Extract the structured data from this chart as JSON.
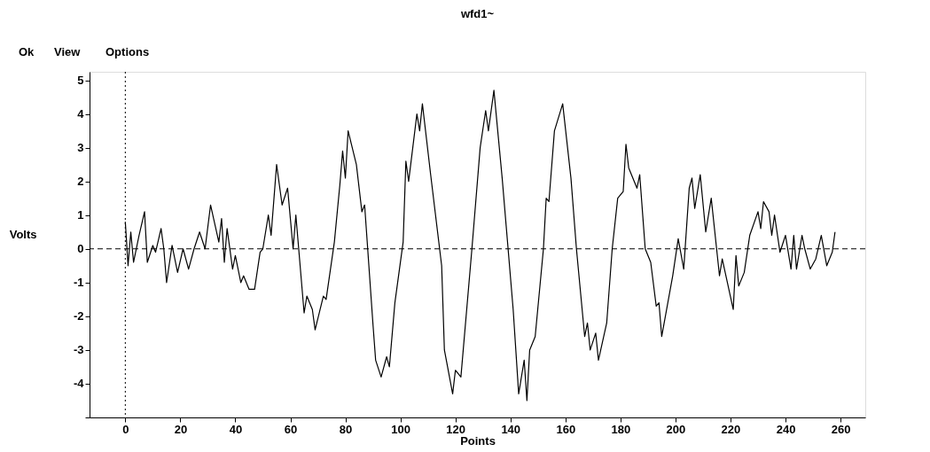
{
  "chart_data": {
    "type": "line",
    "title": "wfd1~",
    "xlabel": "Points",
    "ylabel": "Volts",
    "annotations": [
      "Ok",
      "View",
      "Options"
    ],
    "x": [
      0,
      1,
      2,
      3,
      5,
      7,
      8,
      10,
      11,
      13,
      14,
      15,
      17,
      19,
      21,
      23,
      25,
      27,
      29,
      31,
      34,
      35,
      36,
      37,
      39,
      40,
      42,
      43,
      45,
      47,
      49,
      50,
      52,
      53,
      55,
      57,
      59,
      61,
      62,
      65,
      66,
      68,
      69,
      72,
      73,
      76,
      78,
      79,
      80,
      81,
      84,
      86,
      87,
      90,
      91,
      93,
      95,
      96,
      98,
      101,
      102,
      103,
      106,
      107,
      108,
      111,
      115,
      116,
      119,
      120,
      122,
      126,
      129,
      131,
      132,
      134,
      137,
      141,
      143,
      145,
      146,
      147,
      149,
      152,
      153,
      154,
      156,
      159,
      162,
      164,
      167,
      168,
      169,
      171,
      172,
      175,
      177,
      179,
      181,
      182,
      183,
      186,
      187,
      189,
      191,
      193,
      194,
      195,
      199,
      201,
      203,
      205,
      206,
      207,
      209,
      211,
      213,
      216,
      217,
      221,
      222,
      223,
      225,
      227,
      230,
      231,
      232,
      234,
      235,
      236,
      238,
      240,
      242,
      243,
      244,
      246,
      247,
      249,
      251,
      253,
      255,
      257,
      258
    ],
    "series": [
      {
        "color": "#000000",
        "values": [
          0.8,
          -0.5,
          0.5,
          -0.4,
          0.4,
          1.1,
          -0.4,
          0.1,
          -0.1,
          0.6,
          0.0,
          -1.0,
          0.1,
          -0.7,
          0.0,
          -0.6,
          0.0,
          0.5,
          0.0,
          1.3,
          0.2,
          0.9,
          -0.4,
          0.6,
          -0.6,
          -0.2,
          -1.0,
          -0.8,
          -1.2,
          -1.2,
          -0.1,
          0.0,
          1.0,
          0.4,
          2.5,
          1.3,
          1.8,
          0.0,
          1.0,
          -1.9,
          -1.4,
          -1.8,
          -2.4,
          -1.4,
          -1.5,
          0.2,
          1.9,
          2.9,
          2.1,
          3.5,
          2.5,
          1.1,
          1.3,
          -2.2,
          -3.3,
          -3.8,
          -3.2,
          -3.5,
          -1.6,
          0.2,
          2.6,
          2.0,
          4.0,
          3.5,
          4.3,
          2.2,
          -0.5,
          -3.0,
          -4.3,
          -3.6,
          -3.8,
          0.0,
          3.0,
          4.1,
          3.5,
          4.7,
          2.1,
          -1.8,
          -4.3,
          -3.3,
          -4.5,
          -3.0,
          -2.6,
          0.0,
          1.5,
          1.4,
          3.5,
          4.3,
          2.1,
          0.0,
          -2.6,
          -2.2,
          -3.0,
          -2.5,
          -3.3,
          -2.2,
          0.0,
          1.5,
          1.7,
          3.1,
          2.4,
          1.8,
          2.2,
          0.0,
          -0.4,
          -1.7,
          -1.6,
          -2.6,
          -0.8,
          0.3,
          -0.6,
          1.8,
          2.1,
          1.2,
          2.2,
          0.5,
          1.5,
          -0.8,
          -0.3,
          -1.8,
          -0.2,
          -1.1,
          -0.7,
          0.4,
          1.1,
          0.6,
          1.4,
          1.1,
          0.4,
          1.0,
          -0.1,
          0.4,
          -0.6,
          0.4,
          -0.6,
          0.4,
          0.0,
          -0.6,
          -0.3,
          0.4,
          -0.5,
          -0.1,
          0.5
        ]
      }
    ],
    "xlim": [
      -13,
      269
    ],
    "ylim": [
      -5,
      5.25
    ],
    "xticks": [
      0,
      20,
      40,
      60,
      80,
      100,
      120,
      140,
      160,
      180,
      200,
      220,
      240,
      260
    ],
    "yticks": [
      {
        "value": -5,
        "label": null
      },
      -4,
      -3,
      -2,
      -1,
      0,
      1,
      2,
      3,
      4,
      5
    ],
    "ref_lines": [
      {
        "axis": "y",
        "value": 0,
        "line_style": "dashed"
      },
      {
        "axis": "x",
        "value": 0,
        "line_style": "dotted"
      }
    ],
    "grid": false,
    "marker": "none",
    "line_style": "solid"
  }
}
